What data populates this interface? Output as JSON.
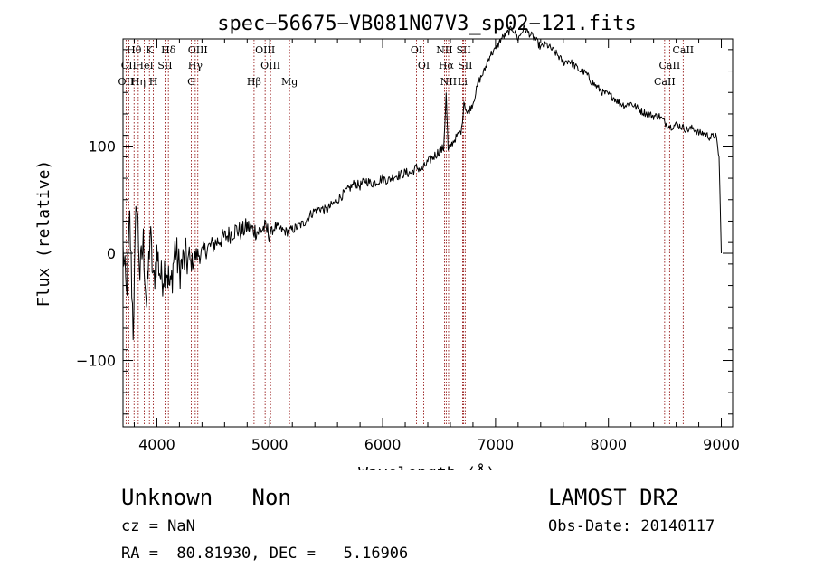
{
  "chart_data": {
    "type": "line",
    "title": "spec−56675−VB081N07V3_sp02−121.fits",
    "xlabel": "Wavelength (Å)",
    "ylabel": "Flux (relative)",
    "xlim": [
      3700,
      9100
    ],
    "ylim": [
      -162,
      200
    ],
    "xticks": [
      4000,
      5000,
      6000,
      7000,
      8000,
      9000
    ],
    "xtick_labels": [
      "4000",
      "5000",
      "6000",
      "7000",
      "8000",
      "9000"
    ],
    "yticks": [
      -100,
      0,
      100
    ],
    "ytick_labels": [
      "−100",
      "0",
      "100"
    ],
    "grid": false,
    "series": [
      {
        "x": [
          3700,
          3730,
          3760,
          3790,
          3820,
          3850,
          3880,
          3910,
          3940,
          3970,
          4000,
          4040,
          4080,
          4120,
          4160,
          4200,
          4250,
          4300,
          4350,
          4400,
          4450,
          4500,
          4550,
          4600,
          4650,
          4700,
          4750,
          4800,
          4850,
          4900,
          4950,
          5000,
          5050,
          5100,
          5150,
          5200,
          5250,
          5300,
          5350,
          5400,
          5450,
          5500,
          5550,
          5600,
          5650,
          5700,
          5750,
          5800,
          5850,
          5900,
          5950,
          6000,
          6050,
          6100,
          6150,
          6200,
          6250,
          6300,
          6350,
          6400,
          6450,
          6500,
          6540,
          6563,
          6580,
          6600,
          6650,
          6700,
          6720,
          6750,
          6800,
          6850,
          6900,
          6950,
          7000,
          7050,
          7100,
          7150,
          7200,
          7250,
          7300,
          7350,
          7400,
          7450,
          7500,
          7550,
          7600,
          7650,
          7700,
          7750,
          7800,
          7850,
          7900,
          7950,
          8000,
          8050,
          8100,
          8150,
          8200,
          8250,
          8300,
          8350,
          8400,
          8450,
          8500,
          8550,
          8600,
          8650,
          8700,
          8750,
          8800,
          8850,
          8900,
          8950,
          8980,
          9000
        ],
        "y": [
          5,
          -40,
          30,
          -70,
          55,
          -20,
          10,
          -50,
          20,
          -30,
          0,
          -25,
          -10,
          -35,
          5,
          -15,
          -5,
          -10,
          -2,
          0,
          5,
          8,
          12,
          15,
          18,
          22,
          20,
          25,
          22,
          20,
          24,
          18,
          25,
          22,
          20,
          22,
          25,
          28,
          35,
          40,
          42,
          40,
          45,
          50,
          55,
          60,
          65,
          63,
          68,
          65,
          67,
          70,
          68,
          72,
          73,
          75,
          75,
          80,
          78,
          85,
          90,
          95,
          98,
          148,
          95,
          100,
          108,
          115,
          142,
          130,
          140,
          160,
          170,
          185,
          190,
          200,
          205,
          210,
          200,
          210,
          205,
          200,
          192,
          195,
          190,
          185,
          178,
          180,
          175,
          170,
          168,
          160,
          155,
          150,
          148,
          145,
          140,
          138,
          140,
          136,
          132,
          130,
          128,
          128,
          122,
          118,
          120,
          118,
          115,
          117,
          112,
          112,
          108,
          110,
          90,
          0
        ]
      }
    ],
    "lines": [
      {
        "label": "Hθ",
        "x": 3798
      },
      {
        "label": "K",
        "x": 3934
      },
      {
        "label": "Hδ",
        "x": 4102
      },
      {
        "label": "OIII",
        "x": 4363
      },
      {
        "label": "OIII",
        "x": 4959
      },
      {
        "label": "OI",
        "x": 6300
      },
      {
        "label": "NII",
        "x": 6548
      },
      {
        "label": "SII",
        "x": 6717
      },
      {
        "label": "CaII",
        "x": 8662
      },
      {
        "label": "CII",
        "x": 3751
      },
      {
        "label": "HeI",
        "x": 3889
      },
      {
        "label": "SII",
        "x": 4072
      },
      {
        "label": "Hγ",
        "x": 4340
      },
      {
        "label": "OIII",
        "x": 5007
      },
      {
        "label": "OI",
        "x": 6364
      },
      {
        "label": "Hα",
        "x": 6563
      },
      {
        "label": "SII",
        "x": 6731
      },
      {
        "label": "CaII",
        "x": 8542
      },
      {
        "label": "OII",
        "x": 3727
      },
      {
        "label": "Hη",
        "x": 3835
      },
      {
        "label": "H",
        "x": 3969
      },
      {
        "label": "G",
        "x": 4305
      },
      {
        "label": "Hβ",
        "x": 4861
      },
      {
        "label": "Mg",
        "x": 5175
      },
      {
        "label": "NII",
        "x": 6584
      },
      {
        "label": "Li",
        "x": 6708
      },
      {
        "label": "CaII",
        "x": 8498
      }
    ],
    "line_color": "#8b0000",
    "spectrum_color": "#000000"
  },
  "footer": {
    "object_class": "Unknown   Non",
    "cz": "cz = NaN",
    "radec": "RA =  80.81930, DEC =   5.16906",
    "survey": "LAMOST DR2",
    "obs_date": "Obs-Date: 20140117"
  }
}
